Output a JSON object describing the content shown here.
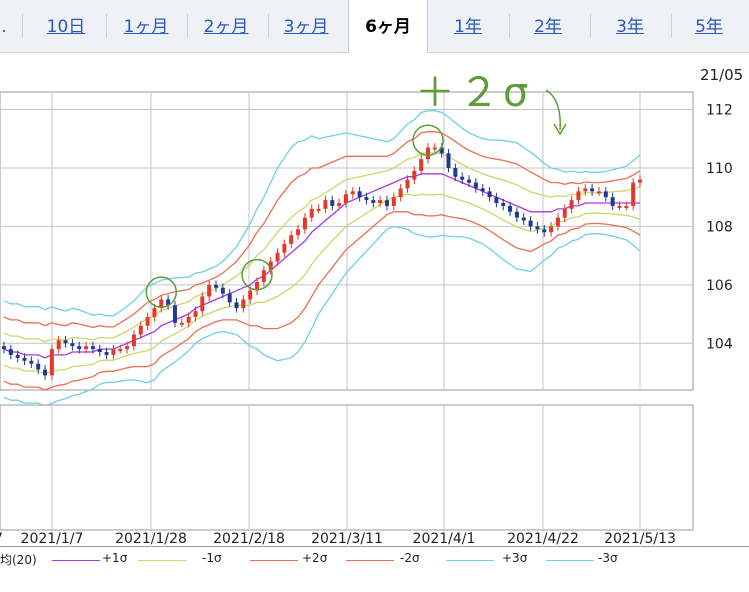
{
  "tabs": [
    {
      "label": "10日",
      "active": false
    },
    {
      "label": "1ヶ月",
      "active": false
    },
    {
      "label": "2ヶ月",
      "active": false
    },
    {
      "label": "3ヶ月",
      "active": false
    },
    {
      "label": "6ヶ月",
      "active": true
    },
    {
      "label": "1年",
      "active": false
    },
    {
      "label": "2年",
      "active": false
    },
    {
      "label": "3年",
      "active": false
    },
    {
      "label": "5年",
      "active": false
    }
  ],
  "annotation": "＋２σ",
  "legend": {
    "ma_label": "均(20)",
    "items": [
      {
        "label": "+1σ",
        "color": "#c9d96a"
      },
      {
        "label": "-1σ",
        "color": "#c9d96a"
      },
      {
        "label": "+2σ",
        "color": "#e8724f"
      },
      {
        "label": "-2σ",
        "color": "#e8724f"
      },
      {
        "label": "+3σ",
        "color": "#6fd0e0"
      },
      {
        "label": "-3σ",
        "color": "#6fd0e0"
      }
    ]
  },
  "chart_data": {
    "type": "candlestick",
    "date_label": "21/05",
    "y_ticks": [
      104,
      106,
      108,
      110,
      112
    ],
    "ylim": [
      102.4,
      112.6
    ],
    "x_ticks": [
      "2021/1/7",
      "2021/1/28",
      "2021/2/18",
      "2021/3/11",
      "2021/4/1",
      "2021/4/22",
      "2021/5/13"
    ],
    "colors": {
      "up": "#e03a2c",
      "down": "#1f3a93",
      "ma": "#a73be0",
      "sigma1": "#c9d96a",
      "sigma2": "#e8724f",
      "sigma3": "#6fd0e0"
    },
    "closes": [
      103.8,
      103.6,
      103.5,
      103.4,
      103.3,
      103.1,
      102.9,
      103.8,
      104.1,
      104.0,
      103.9,
      103.8,
      103.9,
      103.8,
      103.7,
      103.6,
      103.8,
      103.8,
      103.9,
      104.3,
      104.6,
      104.9,
      105.2,
      105.5,
      105.3,
      104.7,
      104.7,
      104.9,
      105.1,
      105.6,
      106.0,
      105.9,
      105.7,
      105.4,
      105.2,
      105.5,
      105.8,
      106.1,
      106.5,
      106.8,
      107.1,
      107.4,
      107.7,
      107.9,
      108.3,
      108.6,
      108.6,
      108.9,
      108.7,
      108.8,
      109.1,
      109.2,
      109.0,
      108.9,
      108.8,
      108.9,
      108.7,
      109.0,
      109.3,
      109.6,
      109.9,
      110.3,
      110.7,
      110.7,
      110.5,
      110.0,
      109.7,
      109.6,
      109.5,
      109.3,
      109.2,
      109.0,
      108.8,
      108.7,
      108.5,
      108.3,
      108.2,
      108.0,
      107.9,
      107.8,
      108.0,
      108.3,
      108.6,
      108.9,
      109.2,
      109.3,
      109.2,
      109.2,
      109.0,
      108.7,
      108.7,
      108.7,
      109.5,
      109.6
    ],
    "ma20": [
      103.8,
      103.7,
      103.7,
      103.6,
      103.6,
      103.6,
      103.5,
      103.6,
      103.6,
      103.6,
      103.7,
      103.7,
      103.7,
      103.7,
      103.8,
      103.8,
      103.8,
      103.9,
      104.0,
      104.1,
      104.2,
      104.3,
      104.4,
      104.6,
      104.7,
      104.8,
      104.9,
      105.0,
      105.2,
      105.3,
      105.4,
      105.5,
      105.6,
      105.7,
      105.8,
      105.9,
      106.0,
      106.2,
      106.3,
      106.5,
      106.7,
      106.9,
      107.1,
      107.3,
      107.5,
      107.8,
      108.0,
      108.2,
      108.4,
      108.6,
      108.8,
      108.9,
      109.0,
      109.1,
      109.2,
      109.3,
      109.4,
      109.5,
      109.6,
      109.7,
      109.7,
      109.8,
      109.8,
      109.8,
      109.8,
      109.7,
      109.6,
      109.5,
      109.4,
      109.3,
      109.2,
      109.1,
      109.0,
      108.9,
      108.8,
      108.7,
      108.6,
      108.5,
      108.5,
      108.5,
      108.5,
      108.6,
      108.6,
      108.7,
      108.7,
      108.8,
      108.8,
      108.8,
      108.8,
      108.8,
      108.8,
      108.8,
      108.8,
      108.8
    ],
    "sigma": [
      0.55,
      0.55,
      0.55,
      0.55,
      0.55,
      0.55,
      0.55,
      0.55,
      0.52,
      0.5,
      0.5,
      0.48,
      0.45,
      0.42,
      0.4,
      0.38,
      0.38,
      0.4,
      0.42,
      0.45,
      0.5,
      0.55,
      0.55,
      0.52,
      0.5,
      0.48,
      0.45,
      0.42,
      0.4,
      0.38,
      0.38,
      0.38,
      0.4,
      0.45,
      0.5,
      0.6,
      0.7,
      0.8,
      0.9,
      1.0,
      1.1,
      1.15,
      1.2,
      1.2,
      1.15,
      1.1,
      1.0,
      0.95,
      0.9,
      0.85,
      0.8,
      0.75,
      0.7,
      0.65,
      0.6,
      0.55,
      0.5,
      0.5,
      0.55,
      0.6,
      0.65,
      0.7,
      0.72,
      0.72,
      0.7,
      0.68,
      0.65,
      0.62,
      0.6,
      0.6,
      0.6,
      0.62,
      0.65,
      0.68,
      0.7,
      0.72,
      0.7,
      0.68,
      0.62,
      0.55,
      0.5,
      0.45,
      0.42,
      0.4,
      0.38,
      0.36,
      0.35,
      0.35,
      0.36,
      0.38,
      0.4,
      0.42,
      0.48,
      0.55
    ]
  }
}
